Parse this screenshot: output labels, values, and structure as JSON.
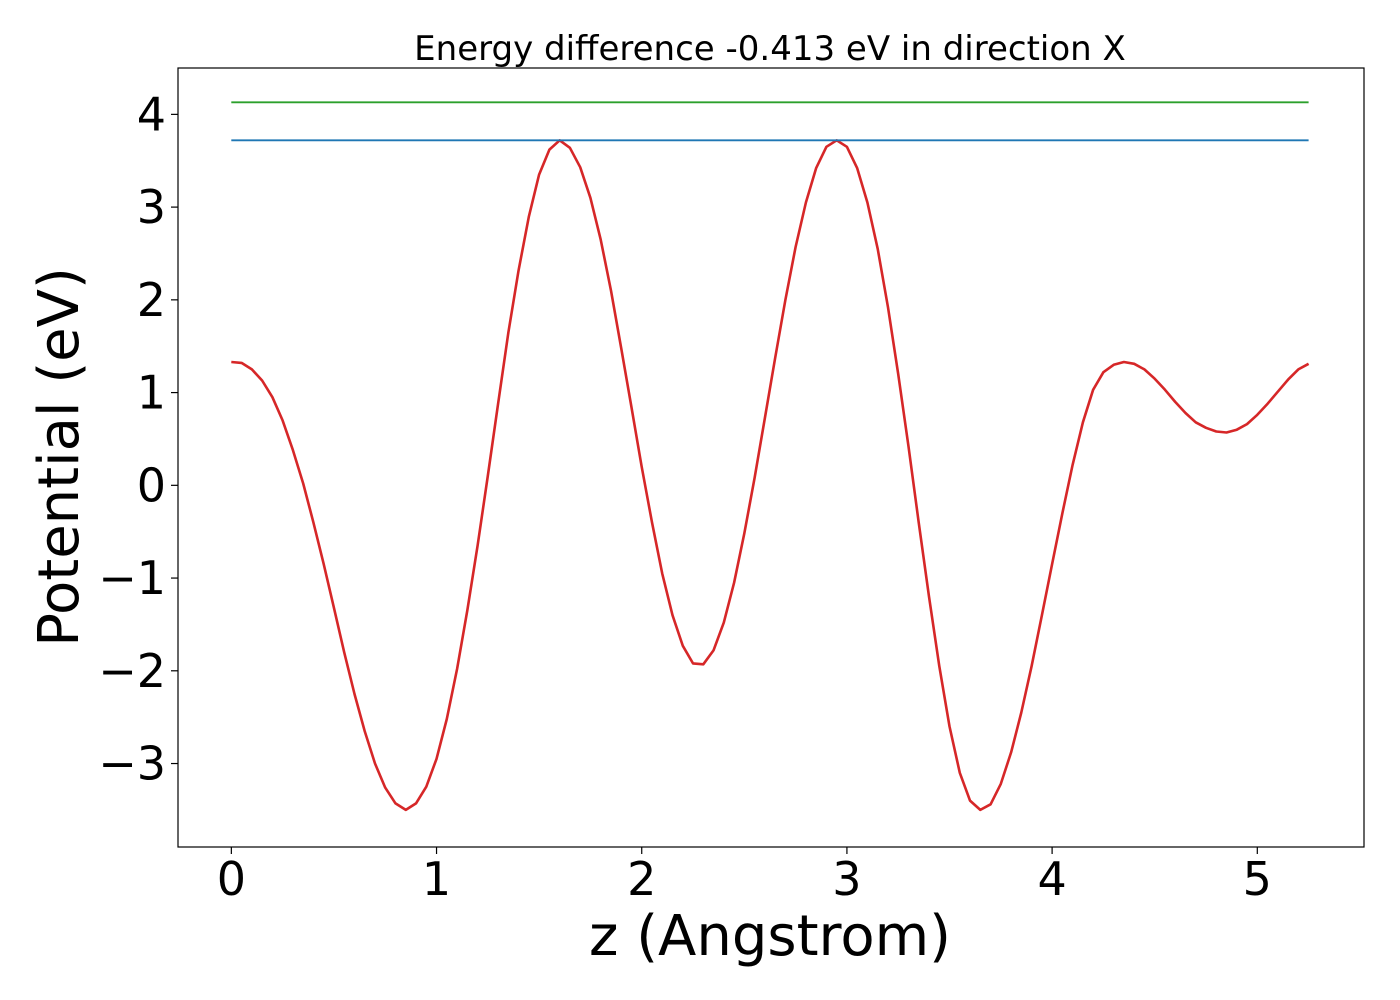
{
  "chart_data": {
    "type": "line",
    "title": "Energy difference -0.413 eV in direction X",
    "xlabel": "z (Angstrom)",
    "ylabel": "Potential (eV)",
    "xlim": [
      -0.26,
      5.52
    ],
    "ylim": [
      -3.9,
      4.5
    ],
    "xticks": [
      0,
      1,
      2,
      3,
      4,
      5
    ],
    "xtick_labels": [
      "0",
      "1",
      "2",
      "3",
      "4",
      "5"
    ],
    "yticks": [
      -3,
      -2,
      -1,
      0,
      1,
      2,
      3,
      4
    ],
    "ytick_labels": [
      "−3",
      "−2",
      "−1",
      "0",
      "1",
      "2",
      "3",
      "4"
    ],
    "grid": false,
    "legend": false,
    "series": [
      {
        "color": "#d62728",
        "x": [
          0.0,
          0.05,
          0.1,
          0.15,
          0.2,
          0.25,
          0.3,
          0.35,
          0.4,
          0.45,
          0.5,
          0.55,
          0.6,
          0.65,
          0.7,
          0.75,
          0.8,
          0.85,
          0.9,
          0.95,
          1.0,
          1.05,
          1.1,
          1.15,
          1.2,
          1.25,
          1.3,
          1.35,
          1.4,
          1.45,
          1.5,
          1.55,
          1.6,
          1.65,
          1.7,
          1.75,
          1.8,
          1.85,
          1.9,
          1.95,
          2.0,
          2.05,
          2.1,
          2.15,
          2.2,
          2.25,
          2.3,
          2.35,
          2.4,
          2.45,
          2.5,
          2.55,
          2.6,
          2.65,
          2.7,
          2.75,
          2.8,
          2.85,
          2.9,
          2.95,
          3.0,
          3.05,
          3.1,
          3.15,
          3.2,
          3.25,
          3.3,
          3.35,
          3.4,
          3.45,
          3.5,
          3.55,
          3.6,
          3.65,
          3.7,
          3.75,
          3.8,
          3.85,
          3.9,
          3.95,
          4.0,
          4.05,
          4.1,
          4.15,
          4.2,
          4.25,
          4.3,
          4.35,
          4.4,
          4.45,
          4.5,
          4.55,
          4.6,
          4.65,
          4.7,
          4.75,
          4.8,
          4.85,
          4.9,
          4.95,
          5.0,
          5.05,
          5.1,
          5.15,
          5.2,
          5.25
        ],
        "y": [
          1.33,
          1.32,
          1.25,
          1.13,
          0.95,
          0.7,
          0.38,
          0.02,
          -0.4,
          -0.85,
          -1.32,
          -1.8,
          -2.25,
          -2.65,
          -3.0,
          -3.26,
          -3.43,
          -3.5,
          -3.43,
          -3.25,
          -2.95,
          -2.52,
          -1.98,
          -1.35,
          -0.65,
          0.1,
          0.88,
          1.65,
          2.32,
          2.9,
          3.35,
          3.62,
          3.72,
          3.64,
          3.43,
          3.1,
          2.65,
          2.1,
          1.48,
          0.84,
          0.2,
          -0.4,
          -0.95,
          -1.4,
          -1.73,
          -1.92,
          -1.93,
          -1.78,
          -1.48,
          -1.05,
          -0.52,
          0.08,
          0.72,
          1.37,
          2.0,
          2.57,
          3.05,
          3.42,
          3.65,
          3.72,
          3.65,
          3.42,
          3.05,
          2.55,
          1.92,
          1.2,
          0.42,
          -0.4,
          -1.2,
          -1.95,
          -2.6,
          -3.1,
          -3.4,
          -3.5,
          -3.44,
          -3.22,
          -2.88,
          -2.45,
          -1.95,
          -1.4,
          -0.85,
          -0.3,
          0.22,
          0.68,
          1.03,
          1.22,
          1.3,
          1.33,
          1.31,
          1.25,
          1.15,
          1.03,
          0.9,
          0.78,
          0.68,
          0.62,
          0.58,
          0.57,
          0.6,
          0.66,
          0.76,
          0.88,
          1.01,
          1.14,
          1.25,
          1.31
        ]
      },
      {
        "color": "#1f77b4",
        "x": [
          0.0,
          5.25
        ],
        "y": [
          3.72,
          3.72
        ]
      },
      {
        "color": "#2ca02c",
        "x": [
          0.0,
          5.25
        ],
        "y": [
          4.13,
          4.13
        ]
      }
    ]
  }
}
